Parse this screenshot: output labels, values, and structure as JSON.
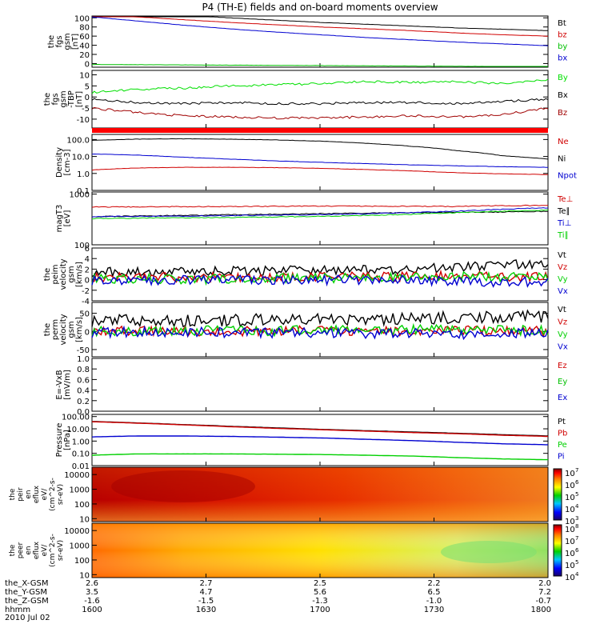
{
  "chart_data": {
    "type": "line",
    "title": "P4 (TH-E) fields and on-board moments overview",
    "date": "2010 Jul 02",
    "x_ticks": [
      "1600",
      "1630",
      "1700",
      "1730",
      "1800"
    ],
    "ephemeris": [
      {
        "label": "the_X-GSM",
        "values": [
          "2.6",
          "2.7",
          "2.5",
          "2.2",
          "2.0"
        ]
      },
      {
        "label": "the_Y-GSM",
        "values": [
          "3.5",
          "4.7",
          "5.6",
          "6.5",
          "7.2"
        ]
      },
      {
        "label": "the_Z-GSM",
        "values": [
          "-1.6",
          "-1.5",
          "-1.3",
          "-1.0",
          "-0.7"
        ]
      },
      {
        "label": "hhmm",
        "values": [
          "1600",
          "1630",
          "1700",
          "1730",
          "1800"
        ]
      }
    ],
    "panels": [
      {
        "id": "fgs",
        "ylabel": [
          "the",
          "fgs",
          "gsm",
          "[nT]"
        ],
        "yticks": [
          "100",
          "80",
          "60",
          "40",
          "20",
          "0"
        ],
        "ylim": [
          -8,
          104
        ],
        "series": [
          {
            "name": "Bt",
            "color": "#000000",
            "values": [
              118,
              112,
              106,
              100,
              95,
              90,
              86,
              82,
              78,
              75,
              72
            ]
          },
          {
            "name": "bz",
            "color": "#d00000",
            "values": [
              108,
              102,
              96,
              90,
              85,
              80,
              76,
              72,
              67,
              63,
              60
            ]
          },
          {
            "name": "by",
            "color": "#00c000",
            "values": [
              -2,
              -2.5,
              -3,
              -3.5,
              -4,
              -4.5,
              -5,
              -5.5,
              -6,
              -6.5,
              -7
            ]
          },
          {
            "name": "bx",
            "color": "#0000d0",
            "values": [
              102,
              93,
              84,
              76,
              69,
              63,
              57,
              52,
              47,
              43,
              39
            ]
          }
        ]
      },
      {
        "id": "fgs-tdp",
        "ylabel": [
          "the",
          "fgs",
          "gsm",
          "-TBP",
          "[nT]"
        ],
        "yticks": [
          "10",
          "5",
          "0",
          "-5",
          "-10"
        ],
        "ylim": [
          -14,
          12
        ],
        "series": [
          {
            "name": "By",
            "color": "#00e000",
            "values": [
              2,
              3.5,
              4,
              5,
              5.5,
              6,
              7,
              6.5,
              7,
              6,
              8
            ]
          },
          {
            "name": "Bx",
            "color": "#000000",
            "values": [
              -1,
              -2.5,
              -3,
              -2.5,
              -3,
              -3,
              -2.5,
              -2.5,
              -3,
              -2,
              -1
            ]
          },
          {
            "name": "Bz",
            "color": "#a00000",
            "values": [
              -5,
              -7,
              -8.5,
              -9,
              -9.5,
              -9.5,
              -9,
              -8.5,
              -9,
              -8,
              -5
            ]
          }
        ]
      },
      {
        "id": "density",
        "ylabel": [
          "Density",
          "[cm-3]"
        ],
        "yticks": [
          "100.0",
          "10.0",
          "1.0",
          "0.1"
        ],
        "log": true,
        "ylim": [
          0.1,
          200
        ],
        "series": [
          {
            "name": "Ne",
            "color": "#d00000",
            "values": [
              1.6,
              2.1,
              2.3,
              2.3,
              2.2,
              2.0,
              1.7,
              1.4,
              1.1,
              0.95,
              0.85
            ]
          },
          {
            "name": "Ni",
            "color": "#000000",
            "values": [
              90,
              105,
              110,
              105,
              95,
              80,
              60,
              40,
              22,
              11,
              7
            ]
          },
          {
            "name": "Npot",
            "color": "#0000d0",
            "values": [
              14,
              12,
              9,
              7,
              5.5,
              4.5,
              3.8,
              3.2,
              2.8,
              2.5,
              2.3
            ]
          }
        ]
      },
      {
        "id": "temp",
        "ylabel": [
          "magT3",
          "[eV]"
        ],
        "yticks": [
          "1000",
          "100"
        ],
        "log": true,
        "ylim": [
          100,
          1100
        ],
        "series": [
          {
            "name": "Te⊥",
            "color": "#d00000",
            "values": [
              560,
              560,
              565,
              570,
              575,
              580,
              580,
              575,
              570,
              590,
              600
            ]
          },
          {
            "name": "Te∥",
            "color": "#000000",
            "values": [
              360,
              370,
              380,
              390,
              400,
              410,
              420,
              430,
              440,
              440,
              460
            ]
          },
          {
            "name": "Ti⊥",
            "color": "#0000d0",
            "values": [
              360,
              365,
              370,
              375,
              385,
              395,
              410,
              430,
              460,
              500,
              540
            ]
          },
          {
            "name": "Ti∥",
            "color": "#00d000",
            "values": [
              330,
              335,
              340,
              345,
              355,
              365,
              380,
              400,
              430,
              460,
              480
            ]
          }
        ]
      },
      {
        "id": "peim",
        "ylabel": [
          "the",
          "peim",
          "velocity",
          "gsm",
          "[km/s]"
        ],
        "yticks": [
          "6",
          "4",
          "2",
          "0",
          "-2",
          "-4"
        ],
        "ylim": [
          -4,
          6
        ],
        "series": [
          {
            "name": "Vt",
            "color": "#000000",
            "values": [
              1.5,
              1.6,
              1.6,
              1.6,
              1.7,
              1.8,
              1.9,
              2.0,
              2.3,
              2.8,
              3.0
            ]
          },
          {
            "name": "Vz",
            "color": "#d00000",
            "values": [
              0.5,
              0.5,
              0.4,
              0.5,
              0.5,
              0.5,
              0.6,
              0.6,
              0.8,
              0.5,
              0.5
            ]
          },
          {
            "name": "Vy",
            "color": "#00d000",
            "values": [
              0.1,
              0.2,
              0.1,
              0.1,
              0.2,
              0.3,
              0.4,
              0.6,
              0.7,
              0.5,
              0.6
            ]
          },
          {
            "name": "Vx",
            "color": "#0000d0",
            "values": [
              -0.1,
              0,
              -0.1,
              0,
              0,
              -0.1,
              0,
              0,
              -0.3,
              -0.5,
              -0.4
            ]
          }
        ]
      },
      {
        "id": "perm",
        "ylabel": [
          "the",
          "perm",
          "velocity",
          "gsm",
          "[km/s]"
        ],
        "yticks": [
          "50",
          "0",
          "-50"
        ],
        "ylim": [
          -70,
          80
        ],
        "series": [
          {
            "name": "Vt",
            "color": "#000000",
            "values": [
              30,
              32,
              30,
              31,
              32,
              33,
              33,
              35,
              38,
              42,
              40
            ]
          },
          {
            "name": "Vz",
            "color": "#d00000",
            "values": [
              0,
              1,
              0,
              0,
              1,
              1,
              0,
              1,
              2,
              0,
              1
            ]
          },
          {
            "name": "Vy",
            "color": "#00d000",
            "values": [
              2,
              2,
              1,
              2,
              2,
              3,
              3,
              4,
              4,
              3,
              4
            ]
          },
          {
            "name": "Vx",
            "color": "#0000d0",
            "values": [
              -3,
              -2,
              -3,
              -3,
              -4,
              -4,
              -5,
              -6,
              -7,
              -6,
              -5
            ]
          }
        ]
      },
      {
        "id": "efield",
        "ylabel": [
          "E=-VxB",
          "[mV/m]"
        ],
        "yticks": [
          "1.0",
          "0.8",
          "0.6",
          "0.4",
          "0.2",
          "0.0"
        ],
        "ylim": [
          0,
          1
        ],
        "series": [
          {
            "name": "Ez",
            "color": "#d00000",
            "values": []
          },
          {
            "name": "Ey",
            "color": "#00c000",
            "values": []
          },
          {
            "name": "Ex",
            "color": "#0000d0",
            "values": []
          }
        ]
      },
      {
        "id": "pressure",
        "ylabel": [
          "Pressure",
          "[nPa]"
        ],
        "yticks": [
          "100.00",
          "10.00",
          "1.00",
          "0.10",
          "0.01"
        ],
        "log": true,
        "ylim": [
          0.01,
          150
        ],
        "series": [
          {
            "name": "Pt",
            "color": "#000000",
            "values": [
              40,
              30,
              22,
              16,
              12,
              9,
              7,
              5.5,
              4.3,
              3.3,
              2.6
            ]
          },
          {
            "name": "Pb",
            "color": "#d00000",
            "values": [
              38,
              29,
              21,
              15,
              11,
              8.5,
              6.5,
              5,
              4,
              3,
              2.4
            ]
          },
          {
            "name": "Pe",
            "color": "#00d000",
            "values": [
              0.07,
              0.09,
              0.09,
              0.09,
              0.085,
              0.08,
              0.07,
              0.06,
              0.045,
              0.035,
              0.03
            ]
          },
          {
            "name": "Pi",
            "color": "#0000d0",
            "values": [
              2.2,
              2.6,
              2.6,
              2.4,
              2.1,
              1.8,
              1.4,
              1.1,
              0.8,
              0.6,
              0.5
            ]
          }
        ]
      }
    ],
    "spectrograms": [
      {
        "id": "peir",
        "ylabel": [
          "the",
          "peir",
          "en",
          "eflux",
          "eV/",
          "(cm^2-s-",
          "sr-eV)"
        ],
        "yticks": [
          "10000",
          "1000",
          "100",
          "10"
        ],
        "colorbar": [
          "10^7",
          "10^6",
          "10^5",
          "10^4",
          "10^3"
        ],
        "cb_exp_hi": 7,
        "cb_exp_lo": 3
      },
      {
        "id": "peer",
        "ylabel": [
          "the",
          "peer",
          "en",
          "eflux",
          "eV/",
          "(cm^2-s-",
          "sr-eV)"
        ],
        "yticks": [
          "10000",
          "1000",
          "100",
          "10"
        ],
        "colorbar": [
          "10^8",
          "10^7",
          "10^6",
          "10^5",
          "10^4"
        ],
        "cb_exp_hi": 8,
        "cb_exp_lo": 4
      }
    ]
  }
}
